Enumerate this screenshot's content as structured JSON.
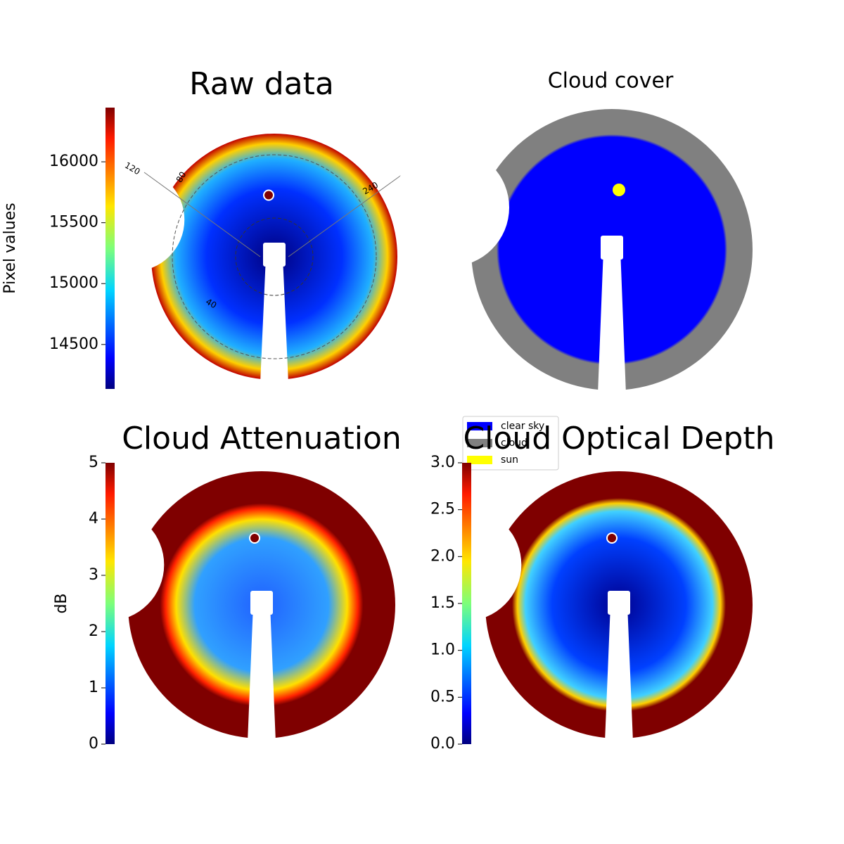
{
  "chart_data": [
    {
      "type": "image",
      "title": "Raw data",
      "colorbar_label": "Pixel values",
      "colormap": "jet",
      "ylim": [
        14135,
        16445
      ],
      "yticks": [
        14500,
        15000,
        15500,
        16000
      ],
      "annotations": [
        "120",
        "80",
        "240",
        "40"
      ]
    },
    {
      "type": "image",
      "title": "Cloud cover",
      "legend": [
        {
          "name": "clear sky",
          "color": "#0000ff"
        },
        {
          "name": "cloud",
          "color": "#808080"
        },
        {
          "name": "sun",
          "color": "#ffff00"
        }
      ]
    },
    {
      "type": "image",
      "title": "Cloud Attenuation",
      "colorbar_label": "dB",
      "colormap": "jet",
      "ylim": [
        0,
        5
      ],
      "yticks": [
        0,
        1,
        2,
        3,
        4,
        5
      ]
    },
    {
      "type": "image",
      "title": "Cloud Optical Depth",
      "colormap": "jet",
      "ylim": [
        0,
        3
      ],
      "yticks": [
        {
          "value": 0,
          "label": "0.0"
        },
        0.5,
        {
          "value": 1,
          "label": "1.0"
        },
        1.5,
        {
          "value": 2,
          "label": "2.0"
        },
        2.5,
        {
          "value": 3,
          "label": "3.0"
        }
      ]
    }
  ]
}
